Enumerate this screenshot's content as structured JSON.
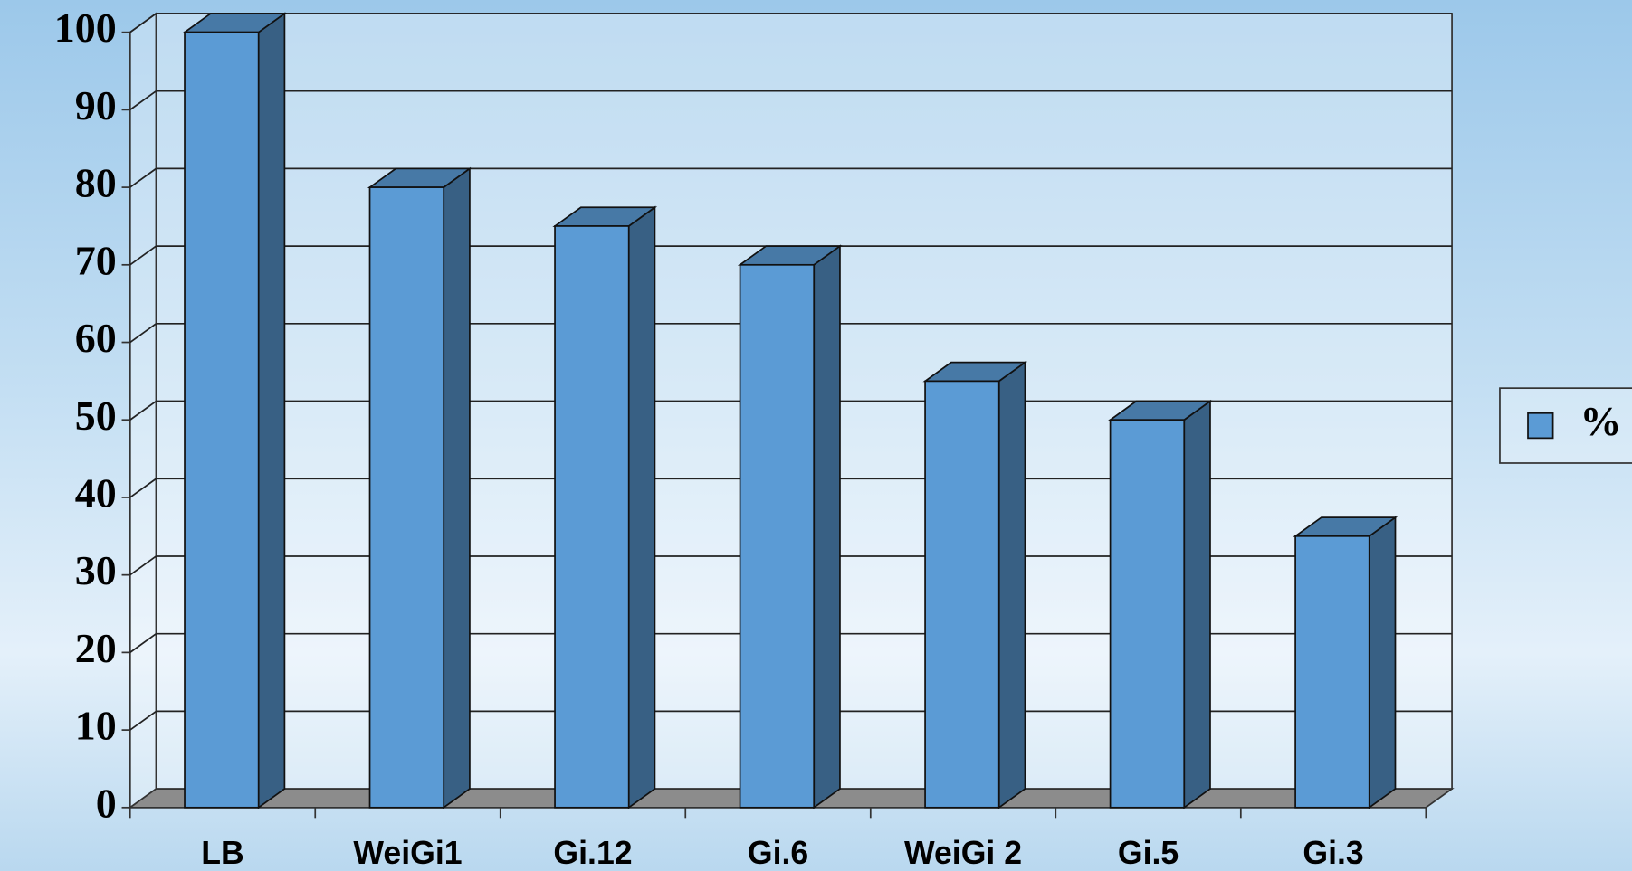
{
  "chart_data": {
    "type": "bar3d",
    "categories": [
      "LB",
      "WeiGi1",
      "Gi.12",
      "Gi.6",
      "WeiGi 2",
      "Gi.5",
      "Gi.3"
    ],
    "series": [
      {
        "name": "%",
        "color": "#5b9bd5",
        "values": [
          100,
          80,
          75,
          70,
          55,
          50,
          35
        ]
      }
    ],
    "ylim": [
      0,
      100
    ],
    "yticks": [
      0,
      10,
      20,
      30,
      40,
      50,
      60,
      70,
      80,
      90,
      100
    ],
    "grid": true,
    "legend": "right"
  }
}
